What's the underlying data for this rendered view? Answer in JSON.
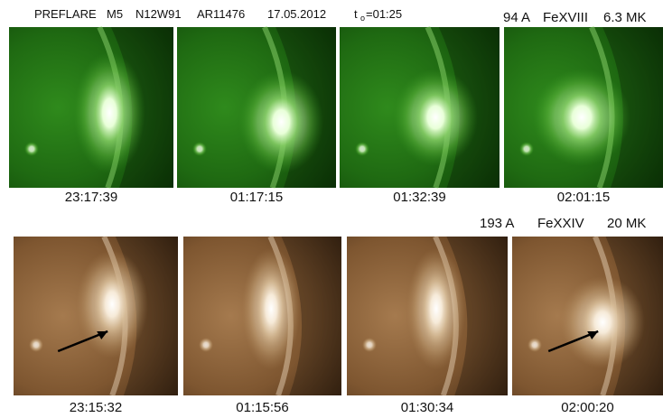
{
  "header": {
    "items": [
      "PREFLARE",
      "M5",
      "N12W91",
      "AR11476",
      "17.05.2012"
    ],
    "t0": {
      "symbol": "t",
      "subscript": "o",
      "value": "=01:25"
    }
  },
  "rows": [
    {
      "channel": {
        "wavelength": "94 A",
        "ion": "FeXVIII",
        "temperature": "6.3 MK"
      },
      "times": [
        "23:17:39",
        "01:17:15",
        "01:32:39",
        "02:01:15"
      ]
    },
    {
      "channel": {
        "wavelength": "193 A",
        "ion": "FeXXIV",
        "temperature": "20 MK"
      },
      "times": [
        "23:15:32",
        "01:15:56",
        "01:30:34",
        "02:00:20"
      ]
    }
  ]
}
